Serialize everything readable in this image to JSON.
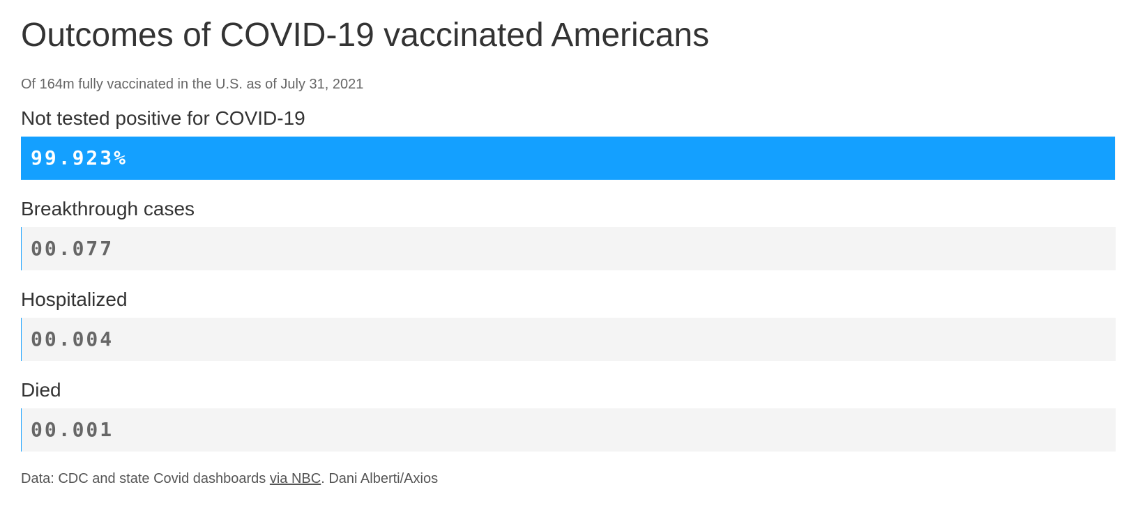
{
  "chart_data": {
    "type": "bar",
    "title": "Outcomes of COVID-19 vaccinated Americans",
    "subtitle": "Of 164m fully vaccinated in the U.S. as of July 31, 2021",
    "categories": [
      "Not tested positive for COVID-19",
      "Breakthrough cases",
      "Hospitalized",
      "Died"
    ],
    "values": [
      99.923,
      0.077,
      0.004,
      0.001
    ],
    "value_labels": [
      "99.923%",
      "00.077",
      "00.004",
      "00.001"
    ],
    "xlim": [
      0,
      100
    ],
    "orientation": "horizontal",
    "grid": false,
    "colors": {
      "bar": "#14a0ff",
      "track": "#f4f4f4"
    }
  },
  "footer": {
    "prefix": "Data: CDC and state Covid dashboards ",
    "link_text": "via NBC",
    "suffix": ". Dani Alberti/Axios"
  }
}
